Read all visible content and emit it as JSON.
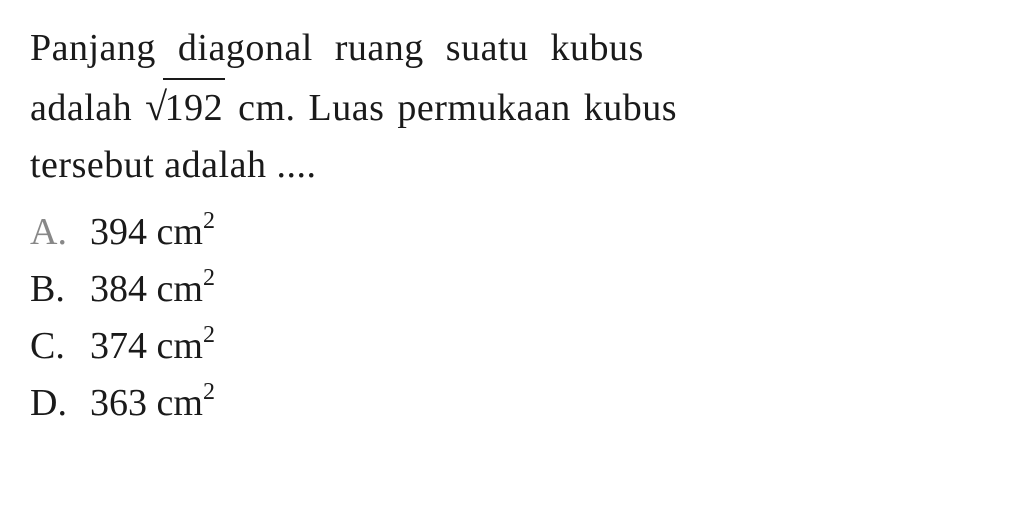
{
  "question": {
    "line1": "Panjang diagonal ruang suatu kubus",
    "line2_before": "adalah ",
    "sqrt_value": "192",
    "line2_after": " cm. Luas permukaan kubus",
    "line3": "tersebut adalah ...."
  },
  "options": {
    "a": {
      "letter": "A.",
      "value": "394 cm",
      "exponent": "2"
    },
    "b": {
      "letter": "B.",
      "value": "384 cm",
      "exponent": "2"
    },
    "c": {
      "letter": "C.",
      "value": "374 cm",
      "exponent": "2"
    },
    "d": {
      "letter": "D.",
      "value": "363 cm",
      "exponent": "2"
    }
  },
  "styling": {
    "background_color": "#ffffff",
    "text_color": "#1a1a1a",
    "faded_color": "#888888",
    "font_size_main": 38,
    "font_size_super": 24,
    "font_family": "Georgia, Times New Roman, serif"
  }
}
